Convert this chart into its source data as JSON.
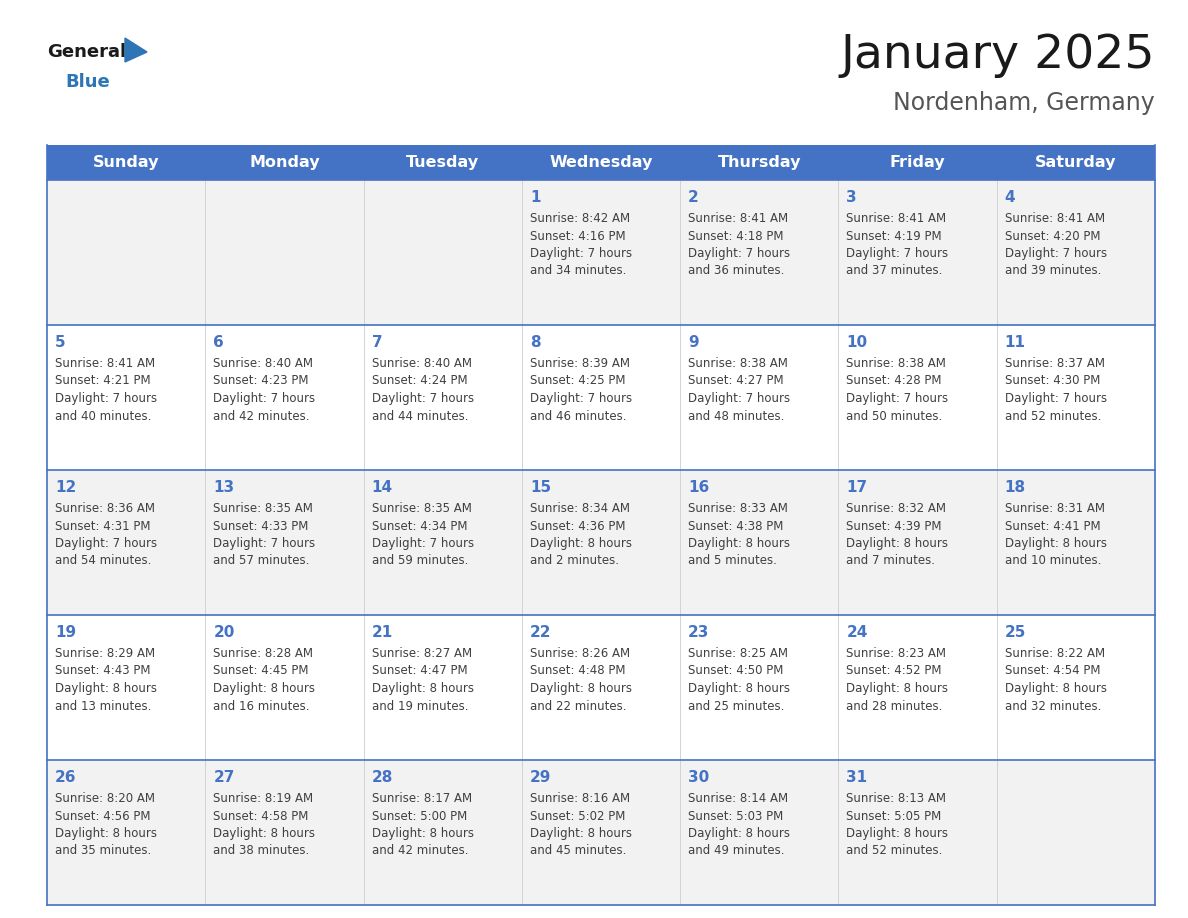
{
  "title": "January 2025",
  "subtitle": "Nordenham, Germany",
  "days_of_week": [
    "Sunday",
    "Monday",
    "Tuesday",
    "Wednesday",
    "Thursday",
    "Friday",
    "Saturday"
  ],
  "header_bg": "#4472C4",
  "header_text": "#FFFFFF",
  "cell_bg_light": "#F2F2F2",
  "cell_bg_white": "#FFFFFF",
  "border_color": "#4472C4",
  "day_num_color": "#4472C4",
  "cell_text_color": "#404040",
  "title_color": "#1a1a1a",
  "subtitle_color": "#555555",
  "logo_general_color": "#1a1a1a",
  "logo_blue_color": "#2E75B6",
  "figsize": [
    11.88,
    9.18
  ],
  "dpi": 100,
  "weeks": [
    [
      {
        "day": null,
        "info": null
      },
      {
        "day": null,
        "info": null
      },
      {
        "day": null,
        "info": null
      },
      {
        "day": 1,
        "info": "Sunrise: 8:42 AM\nSunset: 4:16 PM\nDaylight: 7 hours\nand 34 minutes."
      },
      {
        "day": 2,
        "info": "Sunrise: 8:41 AM\nSunset: 4:18 PM\nDaylight: 7 hours\nand 36 minutes."
      },
      {
        "day": 3,
        "info": "Sunrise: 8:41 AM\nSunset: 4:19 PM\nDaylight: 7 hours\nand 37 minutes."
      },
      {
        "day": 4,
        "info": "Sunrise: 8:41 AM\nSunset: 4:20 PM\nDaylight: 7 hours\nand 39 minutes."
      }
    ],
    [
      {
        "day": 5,
        "info": "Sunrise: 8:41 AM\nSunset: 4:21 PM\nDaylight: 7 hours\nand 40 minutes."
      },
      {
        "day": 6,
        "info": "Sunrise: 8:40 AM\nSunset: 4:23 PM\nDaylight: 7 hours\nand 42 minutes."
      },
      {
        "day": 7,
        "info": "Sunrise: 8:40 AM\nSunset: 4:24 PM\nDaylight: 7 hours\nand 44 minutes."
      },
      {
        "day": 8,
        "info": "Sunrise: 8:39 AM\nSunset: 4:25 PM\nDaylight: 7 hours\nand 46 minutes."
      },
      {
        "day": 9,
        "info": "Sunrise: 8:38 AM\nSunset: 4:27 PM\nDaylight: 7 hours\nand 48 minutes."
      },
      {
        "day": 10,
        "info": "Sunrise: 8:38 AM\nSunset: 4:28 PM\nDaylight: 7 hours\nand 50 minutes."
      },
      {
        "day": 11,
        "info": "Sunrise: 8:37 AM\nSunset: 4:30 PM\nDaylight: 7 hours\nand 52 minutes."
      }
    ],
    [
      {
        "day": 12,
        "info": "Sunrise: 8:36 AM\nSunset: 4:31 PM\nDaylight: 7 hours\nand 54 minutes."
      },
      {
        "day": 13,
        "info": "Sunrise: 8:35 AM\nSunset: 4:33 PM\nDaylight: 7 hours\nand 57 minutes."
      },
      {
        "day": 14,
        "info": "Sunrise: 8:35 AM\nSunset: 4:34 PM\nDaylight: 7 hours\nand 59 minutes."
      },
      {
        "day": 15,
        "info": "Sunrise: 8:34 AM\nSunset: 4:36 PM\nDaylight: 8 hours\nand 2 minutes."
      },
      {
        "day": 16,
        "info": "Sunrise: 8:33 AM\nSunset: 4:38 PM\nDaylight: 8 hours\nand 5 minutes."
      },
      {
        "day": 17,
        "info": "Sunrise: 8:32 AM\nSunset: 4:39 PM\nDaylight: 8 hours\nand 7 minutes."
      },
      {
        "day": 18,
        "info": "Sunrise: 8:31 AM\nSunset: 4:41 PM\nDaylight: 8 hours\nand 10 minutes."
      }
    ],
    [
      {
        "day": 19,
        "info": "Sunrise: 8:29 AM\nSunset: 4:43 PM\nDaylight: 8 hours\nand 13 minutes."
      },
      {
        "day": 20,
        "info": "Sunrise: 8:28 AM\nSunset: 4:45 PM\nDaylight: 8 hours\nand 16 minutes."
      },
      {
        "day": 21,
        "info": "Sunrise: 8:27 AM\nSunset: 4:47 PM\nDaylight: 8 hours\nand 19 minutes."
      },
      {
        "day": 22,
        "info": "Sunrise: 8:26 AM\nSunset: 4:48 PM\nDaylight: 8 hours\nand 22 minutes."
      },
      {
        "day": 23,
        "info": "Sunrise: 8:25 AM\nSunset: 4:50 PM\nDaylight: 8 hours\nand 25 minutes."
      },
      {
        "day": 24,
        "info": "Sunrise: 8:23 AM\nSunset: 4:52 PM\nDaylight: 8 hours\nand 28 minutes."
      },
      {
        "day": 25,
        "info": "Sunrise: 8:22 AM\nSunset: 4:54 PM\nDaylight: 8 hours\nand 32 minutes."
      }
    ],
    [
      {
        "day": 26,
        "info": "Sunrise: 8:20 AM\nSunset: 4:56 PM\nDaylight: 8 hours\nand 35 minutes."
      },
      {
        "day": 27,
        "info": "Sunrise: 8:19 AM\nSunset: 4:58 PM\nDaylight: 8 hours\nand 38 minutes."
      },
      {
        "day": 28,
        "info": "Sunrise: 8:17 AM\nSunset: 5:00 PM\nDaylight: 8 hours\nand 42 minutes."
      },
      {
        "day": 29,
        "info": "Sunrise: 8:16 AM\nSunset: 5:02 PM\nDaylight: 8 hours\nand 45 minutes."
      },
      {
        "day": 30,
        "info": "Sunrise: 8:14 AM\nSunset: 5:03 PM\nDaylight: 8 hours\nand 49 minutes."
      },
      {
        "day": 31,
        "info": "Sunrise: 8:13 AM\nSunset: 5:05 PM\nDaylight: 8 hours\nand 52 minutes."
      },
      {
        "day": null,
        "info": null
      }
    ]
  ]
}
